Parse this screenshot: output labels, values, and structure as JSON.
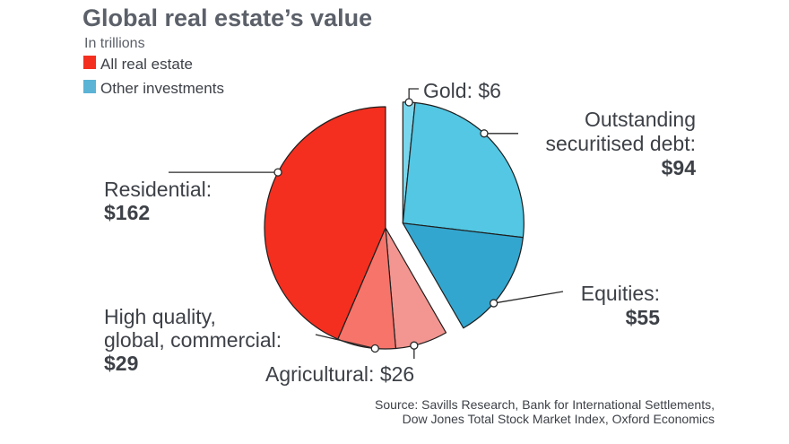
{
  "chart_data": {
    "type": "pie",
    "title": "Global real estate’s value",
    "subtitle": "In trillions",
    "legend": [
      {
        "name": "All real estate",
        "color": "#f42f1f"
      },
      {
        "name": "Other investments",
        "color": "#5bb3d6"
      }
    ],
    "slices": [
      {
        "name": "Gold",
        "value": 6,
        "group": "Other investments",
        "color": "#7ad6ec",
        "label_lines": [
          "Gold: $6"
        ],
        "bold_line": null
      },
      {
        "name": "Outstanding securitised debt",
        "value": 94,
        "group": "Other investments",
        "color": "#53c7e3",
        "label_lines": [
          "Outstanding",
          "securitised debt:"
        ],
        "bold_line": "$94"
      },
      {
        "name": "Equities",
        "value": 55,
        "group": "Other investments",
        "color": "#33a6cf",
        "label_lines": [
          "Equities:"
        ],
        "bold_line": "$55"
      },
      {
        "name": "Agricultural",
        "value": 26,
        "group": "All real estate",
        "color": "#f39590",
        "label_lines": [
          "Agricultural: $26"
        ],
        "bold_line": null
      },
      {
        "name": "High quality, global, commercial",
        "value": 29,
        "group": "All real estate",
        "color": "#f7746a",
        "label_lines": [
          "High quality,",
          "global, commercial:"
        ],
        "bold_line": "$29"
      },
      {
        "name": "Residential",
        "value": 162,
        "group": "All real estate",
        "color": "#f42f1f",
        "label_lines": [
          "Residential:"
        ],
        "bold_line": "$162"
      }
    ],
    "source_lines": [
      "Source: Savills Research, Bank for International Settlements,",
      "Dow Jones Total Stock Market Index, Oxford Economics"
    ]
  }
}
